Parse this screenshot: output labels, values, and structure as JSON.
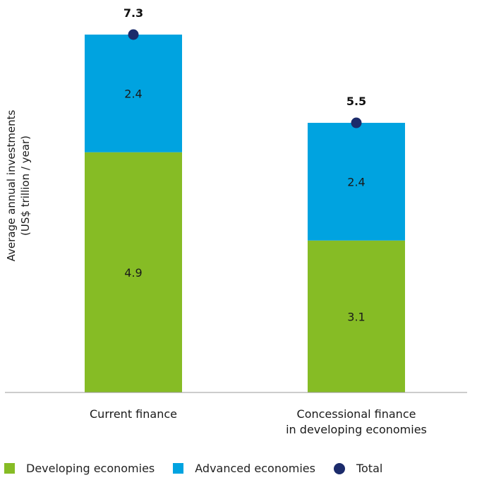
{
  "chart_data": {
    "type": "bar",
    "stacked": true,
    "categories": [
      "Current finance",
      "Concessional finance\nin developing economies"
    ],
    "series": [
      {
        "name": "Developing economies",
        "values": [
          4.9,
          3.1
        ],
        "color": "#86bc25"
      },
      {
        "name": "Advanced economies",
        "values": [
          2.4,
          2.4
        ],
        "color": "#00a3e0"
      },
      {
        "name": "Total",
        "values": [
          7.3,
          5.5
        ],
        "color": "#1b2b6b",
        "marker": "dot"
      }
    ],
    "total_labels": [
      "7.3",
      "5.5"
    ],
    "segment_labels": [
      [
        "4.9",
        "2.4"
      ],
      [
        "3.1",
        "2.4"
      ]
    ],
    "ylabel": "Average annual investments\n(US$ trillion / year)",
    "xlabel": "",
    "ylim": [
      0,
      7.3
    ],
    "grid": false,
    "legend_position": "bottom-left"
  },
  "legend": {
    "items": [
      {
        "label": "Developing economies",
        "color": "#86bc25",
        "icon": "square"
      },
      {
        "label": "Advanced economies",
        "color": "#00a3e0",
        "icon": "square"
      },
      {
        "label": "Total",
        "color": "#1b2b6b",
        "icon": "circle"
      }
    ]
  }
}
